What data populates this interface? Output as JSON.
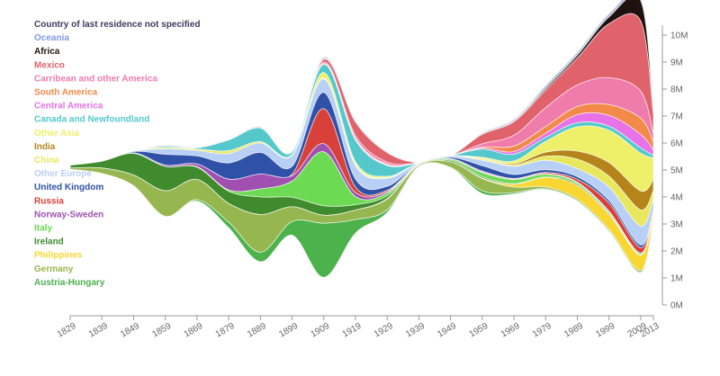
{
  "chart_data": {
    "type": "area",
    "title": "",
    "xlabel": "",
    "ylabel": "",
    "x_ticks": [
      "1829",
      "1839",
      "1849",
      "1859",
      "1869",
      "1879",
      "1889",
      "1899",
      "1909",
      "1919",
      "1929",
      "1939",
      "1949",
      "1959",
      "1969",
      "1979",
      "1989",
      "1999",
      "2009",
      "2013"
    ],
    "y_ticks": [
      "0M",
      "1M",
      "2M",
      "3M",
      "4M",
      "5M",
      "6M",
      "7M",
      "8M",
      "9M",
      "10M"
    ],
    "ylim": [
      0,
      10.5
    ],
    "legend_position": "top-left",
    "x": [
      1829,
      1839,
      1849,
      1859,
      1869,
      1879,
      1889,
      1899,
      1909,
      1919,
      1929,
      1939,
      1949,
      1959,
      1969,
      1979,
      1989,
      1999,
      2009,
      2013
    ],
    "center_line": [
      5.1,
      5.1,
      5.05,
      4.6,
      4.85,
      4.5,
      4.1,
      4.15,
      5.1,
      4.75,
      4.55,
      5.2,
      5.3,
      5.25,
      5.5,
      6.2,
      6.6,
      6.75,
      6.3,
      5.2
    ],
    "series": [
      {
        "name": "Country of last residence not specified",
        "color": "#3b3b5e",
        "values": [
          0,
          0,
          0,
          0.02,
          0.01,
          0.01,
          0.02,
          0.02,
          0.03,
          0.02,
          0.01,
          0,
          0,
          0.02,
          0.03,
          0.05,
          0.05,
          0.05,
          0.06,
          0.04
        ]
      },
      {
        "name": "Oceania",
        "color": "#7f98e6",
        "values": [
          0,
          0,
          0,
          0.02,
          0.02,
          0.02,
          0.03,
          0.03,
          0.04,
          0.03,
          0.02,
          0,
          0,
          0.02,
          0.04,
          0.05,
          0.06,
          0.06,
          0.08,
          0.05
        ]
      },
      {
        "name": "Africa",
        "color": "#1f120e",
        "values": [
          0,
          0,
          0,
          0,
          0,
          0,
          0,
          0,
          0.01,
          0.01,
          0,
          0,
          0,
          0.01,
          0.03,
          0.06,
          0.1,
          0.25,
          0.75,
          0.1
        ]
      },
      {
        "name": "Mexico",
        "color": "#e0636b",
        "values": [
          0,
          0,
          0,
          0,
          0,
          0,
          0,
          0,
          0.1,
          0.5,
          0.35,
          0,
          0,
          0.35,
          0.5,
          0.65,
          1.0,
          2.0,
          2.6,
          0.7
        ]
      },
      {
        "name": "Carribean and other America",
        "color": "#f07cab",
        "values": [
          0,
          0,
          0,
          0,
          0,
          0,
          0,
          0,
          0.05,
          0.1,
          0.08,
          0,
          0,
          0.12,
          0.4,
          0.7,
          0.8,
          1.0,
          1.0,
          0.3
        ]
      },
      {
        "name": "South America",
        "color": "#f28a49",
        "values": [
          0,
          0,
          0,
          0,
          0,
          0,
          0,
          0,
          0.02,
          0.04,
          0.03,
          0,
          0,
          0.04,
          0.2,
          0.25,
          0.3,
          0.4,
          0.6,
          0.3
        ]
      },
      {
        "name": "Central America",
        "color": "#e872e8",
        "values": [
          0,
          0,
          0,
          0,
          0,
          0,
          0,
          0,
          0.01,
          0.03,
          0.02,
          0,
          0,
          0.04,
          0.1,
          0.15,
          0.3,
          0.4,
          0.5,
          0.2
        ]
      },
      {
        "name": "Canada and Newfoundland",
        "color": "#55c8cc",
        "values": [
          0,
          0,
          0,
          0.05,
          0.05,
          0.4,
          0.5,
          0.1,
          0.3,
          0.8,
          0.4,
          0,
          0,
          0.3,
          0.25,
          0.15,
          0.15,
          0.15,
          0.2,
          0.1
        ]
      },
      {
        "name": "Other Asia",
        "color": "#eef06a",
        "values": [
          0,
          0,
          0,
          0,
          0,
          0,
          0,
          0,
          0.2,
          0.1,
          0.05,
          0,
          0,
          0.05,
          0.1,
          0.4,
          0.9,
          1.2,
          1.4,
          0.8
        ]
      },
      {
        "name": "India",
        "color": "#b5841a",
        "values": [
          0,
          0,
          0,
          0,
          0,
          0,
          0,
          0,
          0.01,
          0.01,
          0,
          0,
          0,
          0.01,
          0.05,
          0.15,
          0.3,
          0.5,
          0.7,
          0.4
        ]
      },
      {
        "name": "China",
        "color": "#e8e85e",
        "values": [
          0,
          0,
          0,
          0.05,
          0.05,
          0.1,
          0.05,
          0.03,
          0.03,
          0.03,
          0.02,
          0,
          0,
          0.05,
          0.05,
          0.15,
          0.35,
          0.4,
          0.6,
          0.3
        ]
      },
      {
        "name": "Other Europe",
        "color": "#b8cff6",
        "values": [
          0,
          0,
          0,
          0.2,
          0.2,
          0.35,
          0.35,
          0.4,
          0.5,
          0.5,
          0.3,
          0.02,
          0.05,
          0.2,
          0.3,
          0.35,
          0.3,
          0.5,
          0.7,
          0.4
        ]
      },
      {
        "name": "United Kingdom",
        "color": "#2f52a8",
        "values": [
          0,
          0,
          0.05,
          0.4,
          0.3,
          0.6,
          0.8,
          0.3,
          0.6,
          0.3,
          0.15,
          0.02,
          0.05,
          0.2,
          0.15,
          0.1,
          0.1,
          0.1,
          0.1,
          0.05
        ]
      },
      {
        "name": "Russia",
        "color": "#d8413a",
        "values": [
          0,
          0,
          0,
          0,
          0,
          0,
          0,
          0.05,
          1.3,
          0.2,
          0.05,
          0,
          0,
          0.03,
          0.02,
          0.05,
          0.1,
          0.3,
          0.2,
          0.05
        ]
      },
      {
        "name": "Norway-Sweden",
        "color": "#a050b0",
        "values": [
          0,
          0,
          0.02,
          0.05,
          0.1,
          0.4,
          0.55,
          0.2,
          0.3,
          0.15,
          0.05,
          0.01,
          0.02,
          0.03,
          0.02,
          0.02,
          0.02,
          0.02,
          0.02,
          0.01
        ]
      },
      {
        "name": "Italy",
        "color": "#6cdb53",
        "values": [
          0,
          0,
          0,
          0,
          0.02,
          0.05,
          0.3,
          0.6,
          2.0,
          0.3,
          0.1,
          0.02,
          0.05,
          0.15,
          0.15,
          0.1,
          0.06,
          0.05,
          0.05,
          0.02
        ]
      },
      {
        "name": "Ireland",
        "color": "#3f8b2e",
        "values": [
          0.1,
          0.25,
          0.8,
          0.9,
          0.45,
          0.45,
          0.65,
          0.35,
          0.35,
          0.2,
          0.1,
          0.02,
          0.05,
          0.05,
          0.03,
          0.02,
          0.05,
          0.05,
          0.02,
          0.01
        ]
      },
      {
        "name": "Philippines",
        "color": "#f8d733",
        "values": [
          0,
          0,
          0,
          0,
          0,
          0,
          0,
          0,
          0,
          0,
          0.02,
          0,
          0,
          0.02,
          0.1,
          0.35,
          0.5,
          0.55,
          0.55,
          0.2
        ]
      },
      {
        "name": "Germany",
        "color": "#96b750",
        "values": [
          0.05,
          0.2,
          0.4,
          0.95,
          0.75,
          0.7,
          1.4,
          0.55,
          0.3,
          0.35,
          0.4,
          0.05,
          0.2,
          0.45,
          0.2,
          0.07,
          0.06,
          0.06,
          0.07,
          0.02
        ]
      },
      {
        "name": "Austria-Hungary",
        "color": "#4cb24c",
        "values": [
          0,
          0,
          0,
          0,
          0.05,
          0.2,
          0.35,
          0.5,
          2.0,
          0.5,
          0.1,
          0,
          0.02,
          0.1,
          0.05,
          0.02,
          0.02,
          0.02,
          0.02,
          0.01
        ]
      }
    ]
  }
}
